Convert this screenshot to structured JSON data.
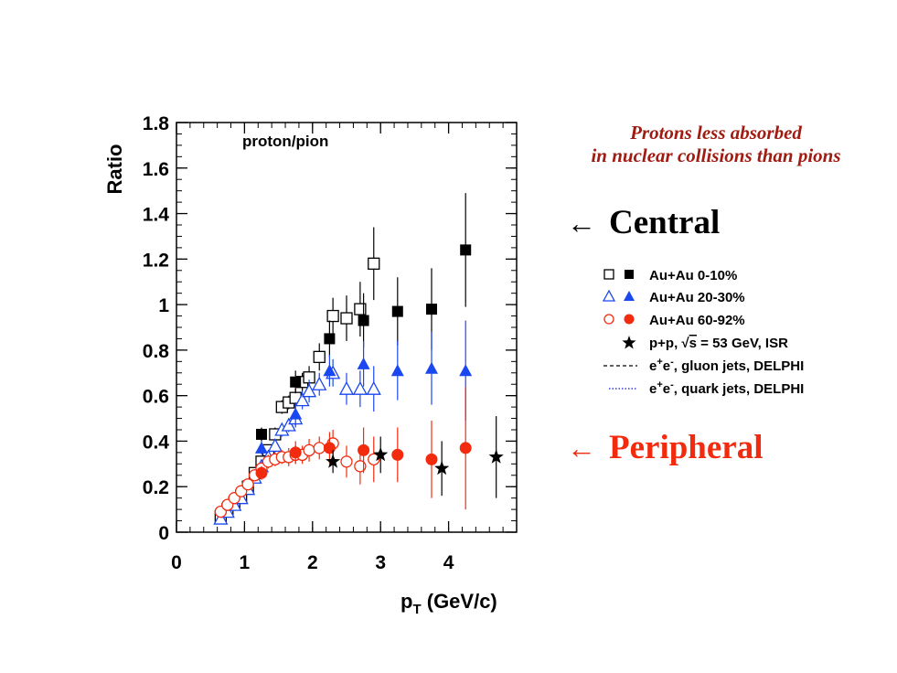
{
  "annotations": {
    "note_line1": "Protons less absorbed",
    "note_line2": "in nuclear collisions than pions",
    "central_arrow": "←",
    "central_label": "Central",
    "peripheral_arrow": "←",
    "peripheral_label": "Peripheral"
  },
  "colors": {
    "note": "#a01c12",
    "central_label": "#000000",
    "peripheral_label": "#f22b0f",
    "auau_0_10": "#000000",
    "auau_20_30": "#1a47f0",
    "auau_60_92": "#f22b0f",
    "pp": "#000000",
    "gluon_jets": "#000000",
    "quark_jets": "#3b3bdf"
  },
  "chart_data": {
    "type": "scatter",
    "panel_label": "proton/pion",
    "ylabel": "Ratio",
    "xlabel_main": "p",
    "xlabel_sub": "T",
    "xlabel_rest": " (GeV/c)",
    "xlim": [
      0,
      5.0
    ],
    "ylim": [
      0,
      1.8
    ],
    "x_ticks": [
      0,
      1,
      2,
      3,
      4
    ],
    "x_tick_labels": [
      "0",
      "1",
      "2",
      "3",
      "4"
    ],
    "y_ticks": [
      0,
      0.2,
      0.4,
      0.6,
      0.8,
      1.0,
      1.2,
      1.4,
      1.6,
      1.8
    ],
    "y_tick_labels": [
      "0",
      "0.2",
      "0.4",
      "0.6",
      "0.8",
      "1",
      "1.2",
      "1.4",
      "1.6",
      "1.8"
    ],
    "legend": {
      "placement": "right",
      "pp_label_prefix": "p+p, ",
      "pp_label_sqrt": "√",
      "pp_label_s": "s",
      "pp_label_rest": " = 53 GeV, ISR",
      "ee_label_e1": "e",
      "ee_label_plus": "+",
      "ee_label_e2": "e",
      "ee_label_minus": "-",
      "gluon_label_rest": ", gluon jets, DELPHI",
      "quark_label_rest": ", quark jets, DELPHI"
    },
    "series": [
      {
        "name": "Au+Au 0-10%",
        "color": "#000000",
        "marker": "square",
        "filled": false,
        "x": [
          0.65,
          0.75,
          0.85,
          0.95,
          1.05,
          1.15,
          1.25,
          1.35,
          1.45,
          1.55,
          1.65,
          1.75,
          1.85,
          1.95,
          2.1,
          2.3,
          2.5,
          2.7,
          2.9
        ],
        "y": [
          0.07,
          0.1,
          0.13,
          0.16,
          0.2,
          0.26,
          0.31,
          0.36,
          0.43,
          0.55,
          0.57,
          0.59,
          0.66,
          0.68,
          0.77,
          0.95,
          0.94,
          0.98,
          1.18
        ],
        "err": [
          0.01,
          0.01,
          0.01,
          0.01,
          0.02,
          0.02,
          0.02,
          0.02,
          0.03,
          0.03,
          0.03,
          0.04,
          0.04,
          0.05,
          0.06,
          0.08,
          0.1,
          0.12,
          0.16
        ]
      },
      {
        "name": "Au+Au 0-10% (filled)",
        "color": "#000000",
        "marker": "square",
        "filled": true,
        "x": [
          1.25,
          1.75,
          2.25,
          2.75,
          3.25,
          3.75,
          4.25
        ],
        "y": [
          0.43,
          0.66,
          0.85,
          0.93,
          0.97,
          0.98,
          1.24
        ],
        "err": [
          0.03,
          0.05,
          0.08,
          0.12,
          0.15,
          0.18,
          0.25
        ]
      },
      {
        "name": "Au+Au 20-30%",
        "color": "#1a47f0",
        "marker": "triangle",
        "filled": false,
        "x": [
          0.65,
          0.75,
          0.85,
          0.95,
          1.05,
          1.15,
          1.25,
          1.35,
          1.45,
          1.55,
          1.65,
          1.75,
          1.85,
          1.95,
          2.1,
          2.3,
          2.5,
          2.7,
          2.9
        ],
        "y": [
          0.06,
          0.09,
          0.12,
          0.15,
          0.19,
          0.24,
          0.29,
          0.33,
          0.38,
          0.45,
          0.47,
          0.5,
          0.58,
          0.62,
          0.65,
          0.7,
          0.63,
          0.63,
          0.63
        ],
        "err": [
          0.01,
          0.01,
          0.01,
          0.01,
          0.02,
          0.02,
          0.02,
          0.02,
          0.03,
          0.03,
          0.03,
          0.04,
          0.04,
          0.05,
          0.05,
          0.06,
          0.07,
          0.08,
          0.1
        ]
      },
      {
        "name": "Au+Au 20-30% (filled)",
        "color": "#1a47f0",
        "marker": "triangle",
        "filled": true,
        "x": [
          1.25,
          1.75,
          2.25,
          2.75,
          3.25,
          3.75,
          4.25
        ],
        "y": [
          0.37,
          0.52,
          0.71,
          0.74,
          0.71,
          0.72,
          0.71
        ],
        "err": [
          0.03,
          0.05,
          0.07,
          0.1,
          0.13,
          0.16,
          0.22
        ]
      },
      {
        "name": "Au+Au 60-92%",
        "color": "#f22b0f",
        "marker": "circle",
        "filled": false,
        "x": [
          0.65,
          0.75,
          0.85,
          0.95,
          1.05,
          1.15,
          1.25,
          1.35,
          1.45,
          1.55,
          1.65,
          1.75,
          1.85,
          1.95,
          2.1,
          2.3,
          2.5,
          2.7,
          2.9
        ],
        "y": [
          0.09,
          0.12,
          0.15,
          0.18,
          0.21,
          0.25,
          0.28,
          0.31,
          0.32,
          0.33,
          0.33,
          0.34,
          0.34,
          0.36,
          0.37,
          0.39,
          0.31,
          0.29,
          0.32
        ],
        "err": [
          0.01,
          0.01,
          0.01,
          0.01,
          0.02,
          0.02,
          0.02,
          0.03,
          0.03,
          0.03,
          0.04,
          0.04,
          0.04,
          0.05,
          0.05,
          0.06,
          0.07,
          0.08,
          0.1
        ]
      },
      {
        "name": "Au+Au 60-92% (filled)",
        "color": "#f22b0f",
        "marker": "circle",
        "filled": true,
        "x": [
          1.25,
          1.75,
          2.25,
          2.75,
          3.25,
          3.75,
          4.25
        ],
        "y": [
          0.26,
          0.35,
          0.37,
          0.36,
          0.34,
          0.32,
          0.37
        ],
        "err": [
          0.03,
          0.05,
          0.07,
          0.1,
          0.12,
          0.17,
          0.27
        ]
      },
      {
        "name": "p+p, √s = 53 GeV, ISR",
        "color": "#000000",
        "marker": "star",
        "filled": true,
        "x": [
          2.3,
          3.0,
          3.9,
          4.7
        ],
        "y": [
          0.31,
          0.34,
          0.28,
          0.33
        ],
        "err": [
          0.05,
          0.08,
          0.12,
          0.18
        ]
      }
    ]
  }
}
